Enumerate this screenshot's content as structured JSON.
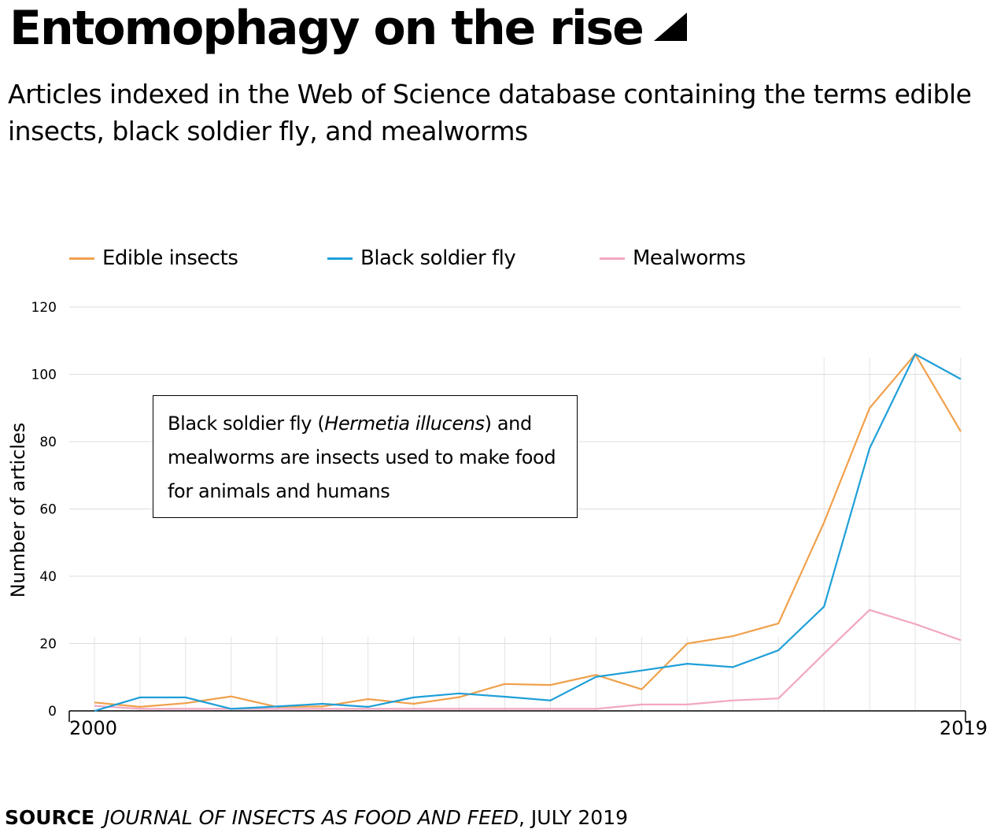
{
  "title": "Entomophagy on the rise",
  "subtitle": "Articles indexed in the Web of Science database containing the terms edible insects, black soldier fly, and mealworms",
  "annotation": {
    "part1": "Black soldier fly (",
    "italic": "Hermetia illucens",
    "part2": ") and mealworms are insects used to make food for animals and humans"
  },
  "source": {
    "label": "SOURCE",
    "publication": "JOURNAL OF INSECTS AS FOOD AND FEED",
    "date": ", JULY 2019"
  },
  "colors": {
    "edible": "#f0a04b",
    "bsf": "#1e9fd8",
    "mealworms": "#f2a7c3"
  },
  "chart_data": {
    "type": "line",
    "title": "Entomophagy on the rise",
    "subtitle": "Articles indexed in the Web of Science database containing the terms edible insects, black soldier fly, and mealworms",
    "xlabel": "",
    "ylabel": "Number of articles",
    "x": [
      2000,
      2001,
      2002,
      2003,
      2004,
      2005,
      2006,
      2007,
      2008,
      2009,
      2010,
      2011,
      2012,
      2013,
      2014,
      2015,
      2016,
      2017,
      2018,
      2019
    ],
    "x_tick_labels": [
      "2000",
      "2019"
    ],
    "ylim": [
      0,
      120
    ],
    "yticks": [
      0,
      20,
      40,
      60,
      80,
      100,
      120
    ],
    "grid": true,
    "legend": "top",
    "series": [
      {
        "name": "Edible insects",
        "color": "#f0a04b",
        "values": [
          2.5,
          1.2,
          2.3,
          4.3,
          1.2,
          1.3,
          3.5,
          2.1,
          4.1,
          8,
          7.7,
          10.7,
          6.4,
          20,
          22.2,
          26,
          56,
          90,
          106,
          83
        ]
      },
      {
        "name": "Black soldier fly",
        "color": "#1e9fd8",
        "values": [
          0,
          4,
          4,
          0.6,
          1.3,
          2.1,
          1.2,
          4,
          5.2,
          4.2,
          3.1,
          10.1,
          12,
          14,
          13,
          18,
          31,
          78,
          106,
          98.6
        ]
      },
      {
        "name": "Mealworms",
        "color": "#f2a7c3",
        "values": [
          1.5,
          0.6,
          0.6,
          0.6,
          0.6,
          0.6,
          0.6,
          0.6,
          0.6,
          0.6,
          0.6,
          0.6,
          1.9,
          1.9,
          3.1,
          3.7,
          17,
          30,
          25.8,
          21
        ]
      }
    ]
  }
}
